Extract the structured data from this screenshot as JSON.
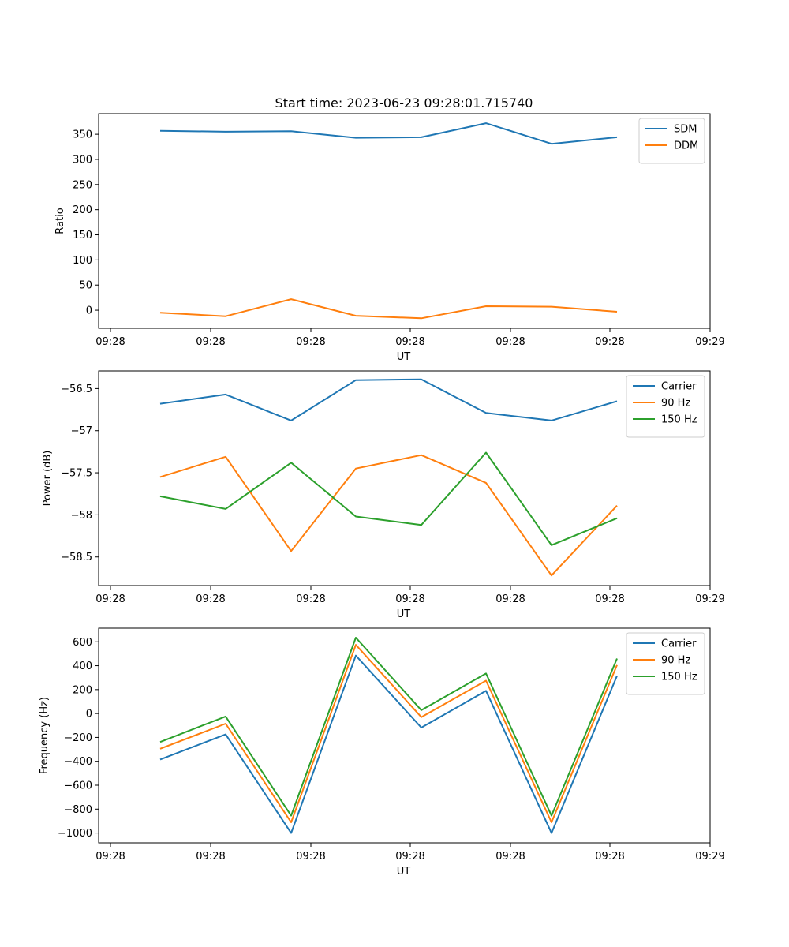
{
  "figure_title": "Start time: 2023-06-23 09:28:01.715740",
  "chart_data": [
    {
      "type": "line",
      "title": "Start time: 2023-06-23 09:28:01.715740",
      "xlabel": "UT",
      "ylabel": "Ratio",
      "x_tick_labels": [
        "09:28",
        "09:28",
        "09:28",
        "09:28",
        "09:28",
        "09:28",
        "09:28",
        "09:29"
      ],
      "y_ticks": [
        0,
        50,
        100,
        150,
        200,
        250,
        300,
        350
      ],
      "ylim": [
        -36,
        391
      ],
      "grid": false,
      "legend": "top-right",
      "series": [
        {
          "name": "SDM",
          "color": "#1f77b4",
          "values": [
            357,
            355,
            356,
            343,
            344,
            372,
            331,
            344
          ]
        },
        {
          "name": "DDM",
          "color": "#ff7f0e",
          "values": [
            -5,
            -12,
            22,
            -11,
            -16,
            8,
            7,
            -3
          ]
        }
      ]
    },
    {
      "type": "line",
      "title": "",
      "xlabel": "UT",
      "ylabel": "Power (dB)",
      "x_tick_labels": [
        "09:28",
        "09:28",
        "09:28",
        "09:28",
        "09:28",
        "09:28",
        "09:28",
        "09:29"
      ],
      "y_ticks": [
        -56.5,
        -57.0,
        -57.5,
        -58.0,
        -58.5
      ],
      "ylim": [
        -58.84,
        -56.29
      ],
      "grid": false,
      "legend": "top-right",
      "series": [
        {
          "name": "Carrier",
          "color": "#1f77b4",
          "values": [
            -56.68,
            -56.57,
            -56.88,
            -56.4,
            -56.39,
            -56.79,
            -56.88,
            -56.65
          ]
        },
        {
          "name": "90 Hz",
          "color": "#ff7f0e",
          "values": [
            -57.55,
            -57.31,
            -58.43,
            -57.45,
            -57.29,
            -57.62,
            -58.72,
            -57.89
          ]
        },
        {
          "name": "150 Hz",
          "color": "#2ca02c",
          "values": [
            -57.78,
            -57.93,
            -57.38,
            -58.02,
            -58.12,
            -57.26,
            -58.36,
            -58.04
          ]
        }
      ]
    },
    {
      "type": "line",
      "title": "",
      "xlabel": "UT",
      "ylabel": "Frequency (Hz)",
      "x_tick_labels": [
        "09:28",
        "09:28",
        "09:28",
        "09:28",
        "09:28",
        "09:28",
        "09:28",
        "09:29"
      ],
      "y_ticks": [
        600,
        400,
        200,
        0,
        -200,
        -400,
        -600,
        -800,
        -1000
      ],
      "ylim": [
        -1082,
        714
      ],
      "grid": false,
      "legend": "top-right",
      "series": [
        {
          "name": "Carrier",
          "color": "#1f77b4",
          "values": [
            -385,
            -175,
            -1000,
            485,
            -118,
            190,
            -1000,
            315
          ]
        },
        {
          "name": "90 Hz",
          "color": "#ff7f0e",
          "values": [
            -295,
            -85,
            -910,
            575,
            -30,
            275,
            -910,
            405
          ]
        },
        {
          "name": "150 Hz",
          "color": "#2ca02c",
          "values": [
            -238,
            -25,
            -855,
            635,
            28,
            335,
            -855,
            460
          ]
        }
      ]
    }
  ]
}
